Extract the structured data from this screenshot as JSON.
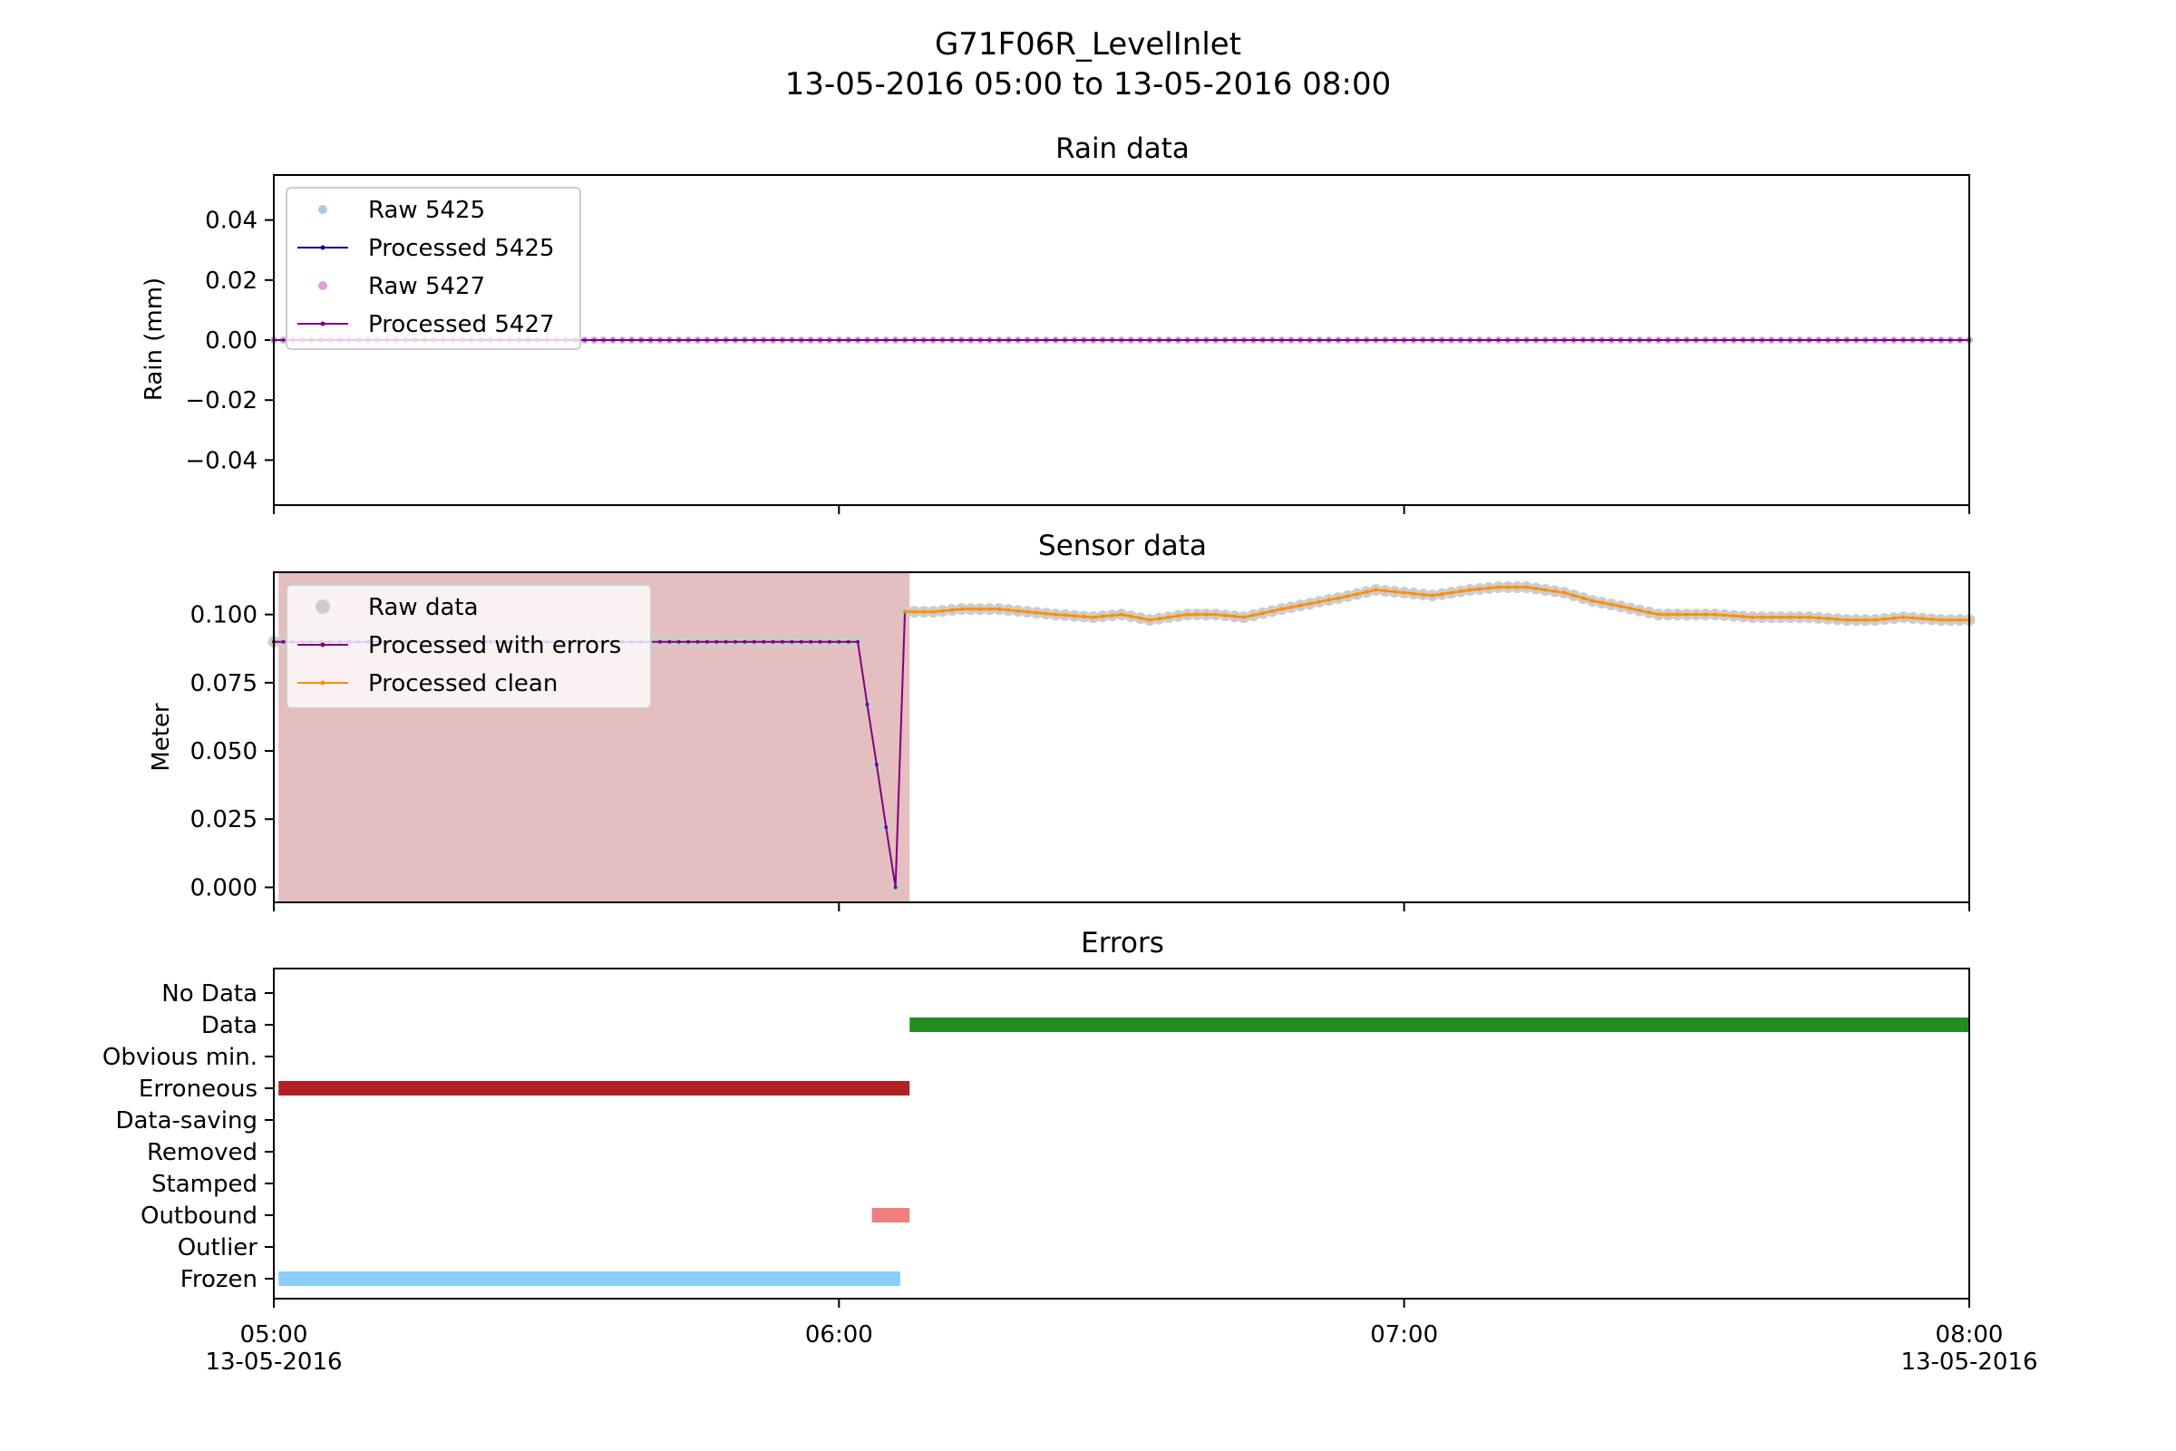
{
  "figure": {
    "title": "G71F06R_LevelInlet",
    "subtitle": "13-05-2016 05:00 to 13-05-2016 08:00"
  },
  "x_axis": {
    "range_minutes": [
      0,
      180
    ],
    "ticks": [
      {
        "minute": 0,
        "time": "05:00",
        "date": "13-05-2016"
      },
      {
        "minute": 60,
        "time": "06:00",
        "date": ""
      },
      {
        "minute": 120,
        "time": "07:00",
        "date": ""
      },
      {
        "minute": 180,
        "time": "08:00",
        "date": "13-05-2016"
      }
    ]
  },
  "chart_data": [
    {
      "type": "line",
      "title": "Rain data",
      "ylabel": "Rain (mm)",
      "ylim": [
        -0.055,
        0.055
      ],
      "yticks": [
        {
          "value": 0.04,
          "label": "0.04"
        },
        {
          "value": 0.02,
          "label": "0.02"
        },
        {
          "value": 0.0,
          "label": "0.00"
        },
        {
          "value": -0.02,
          "label": "−0.02"
        },
        {
          "value": -0.04,
          "label": "−0.04"
        }
      ],
      "legend_position": "top-left",
      "series": [
        {
          "name": "Raw 5425",
          "style": "points",
          "color": "#aec7e8",
          "x_start": 0,
          "x_end": 180,
          "x_step": 1,
          "value": 0.0
        },
        {
          "name": "Processed 5425",
          "style": "line",
          "color": "#00008b",
          "x_start": 0,
          "x_end": 180,
          "x_step": 1,
          "value": 0.0
        },
        {
          "name": "Raw 5427",
          "style": "points",
          "color": "#dda0dd",
          "x_start": 0,
          "x_end": 180,
          "x_step": 1,
          "value": 0.0
        },
        {
          "name": "Processed 5427",
          "style": "line",
          "color": "#800080",
          "x_start": 0,
          "x_end": 180,
          "x_step": 1,
          "value": 0.0
        }
      ]
    },
    {
      "type": "line",
      "title": "Sensor data",
      "ylabel": "Meter",
      "ylim": [
        -0.0055,
        0.1155
      ],
      "yticks": [
        {
          "value": 0.1,
          "label": "0.100"
        },
        {
          "value": 0.075,
          "label": "0.075"
        },
        {
          "value": 0.05,
          "label": "0.050"
        },
        {
          "value": 0.025,
          "label": "0.025"
        },
        {
          "value": 0.0,
          "label": "0.000"
        }
      ],
      "legend_position": "top-left",
      "shaded_region": {
        "x_start": 0.5,
        "x_end": 67.5,
        "color": "#e5bebf"
      },
      "series": [
        {
          "name": "Raw data",
          "color": "#cccccc"
        },
        {
          "name": "Processed with errors",
          "color": "#800080"
        },
        {
          "name": "Processed clean",
          "color": "#ff8c00"
        }
      ],
      "errors_points": [
        [
          0,
          0.09
        ],
        [
          1,
          0.09
        ],
        [
          5,
          0.09
        ],
        [
          10,
          0.09
        ],
        [
          15,
          0.09
        ],
        [
          20,
          0.09
        ],
        [
          25,
          0.09
        ],
        [
          30,
          0.09
        ],
        [
          35,
          0.09
        ],
        [
          40,
          0.09
        ],
        [
          45,
          0.09
        ],
        [
          50,
          0.09
        ],
        [
          55,
          0.09
        ],
        [
          60,
          0.09
        ],
        [
          62,
          0.09
        ],
        [
          63,
          0.067
        ],
        [
          64,
          0.045
        ],
        [
          65,
          0.022
        ],
        [
          66,
          0.0
        ],
        [
          67,
          0.101
        ]
      ],
      "clean_points": [
        [
          67,
          0.101
        ],
        [
          70,
          0.101
        ],
        [
          73,
          0.102
        ],
        [
          77,
          0.102
        ],
        [
          80,
          0.101
        ],
        [
          83,
          0.1
        ],
        [
          87,
          0.099
        ],
        [
          90,
          0.1
        ],
        [
          93,
          0.098
        ],
        [
          97,
          0.1
        ],
        [
          100,
          0.1
        ],
        [
          103,
          0.099
        ],
        [
          107,
          0.102
        ],
        [
          110,
          0.104
        ],
        [
          113,
          0.106
        ],
        [
          117,
          0.109
        ],
        [
          120,
          0.108
        ],
        [
          123,
          0.107
        ],
        [
          127,
          0.109
        ],
        [
          130,
          0.11
        ],
        [
          133,
          0.11
        ],
        [
          137,
          0.108
        ],
        [
          140,
          0.105
        ],
        [
          143,
          0.103
        ],
        [
          147,
          0.1
        ],
        [
          150,
          0.1
        ],
        [
          153,
          0.1
        ],
        [
          157,
          0.099
        ],
        [
          160,
          0.099
        ],
        [
          163,
          0.099
        ],
        [
          167,
          0.098
        ],
        [
          170,
          0.098
        ],
        [
          173,
          0.099
        ],
        [
          177,
          0.098
        ],
        [
          180,
          0.098
        ]
      ]
    },
    {
      "type": "bar",
      "title": "Errors",
      "categories": [
        "No Data",
        "Data",
        "Obvious min.",
        "Erroneous",
        "Data-saving",
        "Removed",
        "Stamped",
        "Outbound",
        "Outlier",
        "Frozen"
      ],
      "ranges": [
        {
          "category": "Data",
          "x_start": 67.5,
          "x_end": 180,
          "color": "#228b22"
        },
        {
          "category": "Erroneous",
          "x_start": 0.5,
          "x_end": 67.5,
          "color": "#b22222"
        },
        {
          "category": "Outbound",
          "x_start": 63.5,
          "x_end": 67.5,
          "color": "#f08080"
        },
        {
          "category": "Frozen",
          "x_start": 0.5,
          "x_end": 66.5,
          "color": "#87cefa"
        }
      ]
    }
  ]
}
